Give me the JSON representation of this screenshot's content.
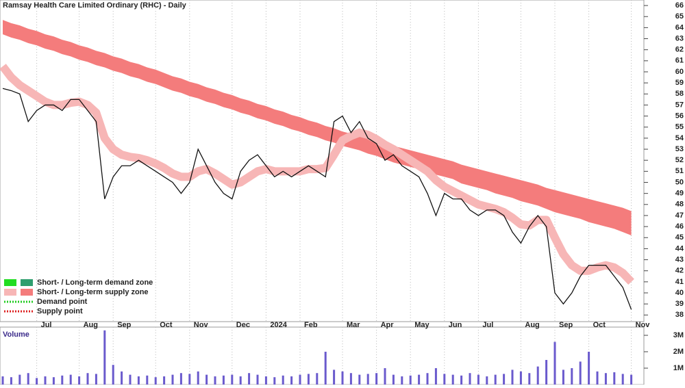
{
  "chart_data": {
    "type": "line",
    "title": "Ramsay Health Care Limited Ordinary (RHC) - Daily",
    "categories": [
      null,
      null,
      null,
      null,
      "Jul",
      null,
      null,
      null,
      null,
      "Aug",
      null,
      null,
      null,
      "Sep",
      null,
      null,
      null,
      null,
      "Oct",
      null,
      null,
      null,
      "Nov",
      null,
      null,
      null,
      null,
      "Dec",
      null,
      null,
      null,
      "2024",
      null,
      null,
      null,
      "Feb",
      null,
      null,
      null,
      null,
      "Mar",
      null,
      null,
      null,
      "Apr",
      null,
      null,
      null,
      "May",
      null,
      null,
      null,
      "Jun",
      null,
      null,
      null,
      "Jul",
      null,
      null,
      null,
      null,
      "Aug",
      null,
      null,
      null,
      "Sep",
      null,
      null,
      null,
      "Oct",
      null,
      null,
      null,
      null,
      "Nov"
    ],
    "close": {
      "color": "#111111",
      "values": [
        58.5,
        58.3,
        58,
        55.5,
        56.5,
        57,
        57,
        56.5,
        57.5,
        57.5,
        56.5,
        55.5,
        48.5,
        50.5,
        51.5,
        51.5,
        52,
        51.5,
        51,
        50.5,
        50,
        49,
        50,
        53,
        51.5,
        50,
        49,
        48.5,
        51,
        52,
        52.5,
        51.5,
        50.5,
        51,
        50.5,
        51,
        51.5,
        51,
        50.5,
        55.5,
        56,
        54.5,
        55.5,
        54,
        53.5,
        52,
        52.5,
        51.5,
        51,
        50.5,
        49,
        47,
        49,
        48.5,
        48.5,
        47.5,
        47,
        47.5,
        47.5,
        47,
        45.5,
        44.5,
        46,
        47,
        46,
        40,
        39,
        40,
        41.5,
        42.5,
        42.5,
        42.5,
        41.5,
        40.5,
        38.5
      ]
    },
    "short_zone": {
      "color": "#f7b6b6",
      "values": [
        60.5,
        59.5,
        58.8,
        58.3,
        57.8,
        57.3,
        57,
        57,
        57.2,
        57.3,
        57,
        56.3,
        54,
        53,
        52.5,
        52.3,
        52.2,
        52,
        51.7,
        51.3,
        50.8,
        50.5,
        50.5,
        51,
        51.2,
        50.8,
        50.3,
        49.8,
        50,
        50.5,
        51,
        51.2,
        51,
        51,
        51,
        51,
        51.2,
        51.2,
        51.3,
        52.5,
        53.8,
        54.2,
        54.5,
        54.3,
        53.9,
        53.4,
        53,
        52.5,
        52,
        51.5,
        51,
        50.2,
        49.6,
        49.2,
        48.8,
        48.4,
        48,
        47.8,
        47.6,
        47.3,
        46.8,
        46.2,
        46.1,
        46.6,
        46.6,
        45,
        43.5,
        42.5,
        42,
        42,
        42.3,
        42.5,
        42.3,
        41.8,
        41
      ]
    },
    "long_zone": {
      "color": "#f47c7c",
      "upper": [
        64.7,
        64.4,
        64.2,
        63.9,
        63.7,
        63.4,
        63.2,
        62.9,
        62.7,
        62.4,
        62.2,
        61.9,
        61.7,
        61.4,
        61.2,
        60.9,
        60.7,
        60.4,
        60.2,
        59.9,
        59.6,
        59.4,
        59.1,
        58.9,
        58.6,
        58.4,
        58.1,
        57.9,
        57.6,
        57.4,
        57.1,
        56.9,
        56.6,
        56.4,
        56.1,
        55.9,
        55.6,
        55.4,
        55.1,
        54.9,
        54.6,
        54.4,
        54.2,
        54,
        53.8,
        53.5,
        53.3,
        53.1,
        52.9,
        52.7,
        52.5,
        52.3,
        52.1,
        51.9,
        51.6,
        51.4,
        51.2,
        51,
        50.8,
        50.6,
        50.4,
        50.2,
        50,
        49.8,
        49.5,
        49.3,
        49.1,
        48.9,
        48.7,
        48.5,
        48.3,
        48.1,
        47.9,
        47.7,
        47.4
      ],
      "lower": [
        63.4,
        63.1,
        62.9,
        62.6,
        62.4,
        62.1,
        61.9,
        61.6,
        61.4,
        61.1,
        60.9,
        60.6,
        60.4,
        60.1,
        59.9,
        59.6,
        59.4,
        59.1,
        58.9,
        58.6,
        58.3,
        58.1,
        57.8,
        57.6,
        57.3,
        57.1,
        56.8,
        56.6,
        56.3,
        56.1,
        55.8,
        55.6,
        55.3,
        55.1,
        54.8,
        54.6,
        54.3,
        54.1,
        53.8,
        53.6,
        53.3,
        53.1,
        52.9,
        52.6,
        52.4,
        52.1,
        51.8,
        51.6,
        51.4,
        51.2,
        50.9,
        50.7,
        50.5,
        50.3,
        49.9,
        49.7,
        49.5,
        49.3,
        49,
        48.8,
        48.6,
        48.3,
        48.1,
        47.9,
        47.6,
        47.3,
        47.1,
        46.9,
        46.7,
        46.4,
        46.2,
        46,
        45.8,
        45.5,
        45.2
      ]
    },
    "ylim": [
      37.4,
      66.5
    ],
    "yticks": [
      38,
      39,
      40,
      41,
      42,
      43,
      44,
      45,
      46,
      47,
      48,
      49,
      50,
      51,
      52,
      53,
      54,
      55,
      56,
      57,
      58,
      59,
      60,
      61,
      62,
      63,
      64,
      65,
      66
    ],
    "grid": true,
    "legend": [
      "Short- / Long-term demand zone",
      "Short- / Long-term supply zone",
      "Demand point",
      "Supply point"
    ],
    "legend_colors": [
      "#22dd22",
      "#f7b6b6",
      "#22cc22",
      "#dd2222"
    ],
    "volume": {
      "label": "Volume",
      "color": "#6a5acd",
      "values": [
        500000,
        450000,
        600000,
        700000,
        400000,
        500000,
        450000,
        550000,
        600000,
        500000,
        700000,
        650000,
        3300000,
        1200000,
        800000,
        600000,
        500000,
        550000,
        450000,
        500000,
        600000,
        700000,
        650000,
        800000,
        600000,
        500000,
        550000,
        600000,
        500000,
        700000,
        600000,
        500000,
        450000,
        550000,
        500000,
        600000,
        650000,
        700000,
        2000000,
        900000,
        800000,
        700000,
        600000,
        650000,
        700000,
        1000000,
        600000,
        500000,
        550000,
        600000,
        700000,
        1000000,
        650000,
        600000,
        550000,
        700000,
        600000,
        500000,
        600000,
        650000,
        900000,
        800000,
        700000,
        1100000,
        1500000,
        2600000,
        900000,
        1000000,
        1400000,
        2000000,
        800000,
        700000,
        750000,
        650000,
        600000
      ],
      "ylim": [
        0,
        3500000
      ],
      "yticks": [
        {
          "value": 1000000,
          "label": "1M"
        },
        {
          "value": 2000000,
          "label": "2M"
        },
        {
          "value": 3000000,
          "label": "3M"
        }
      ]
    }
  }
}
